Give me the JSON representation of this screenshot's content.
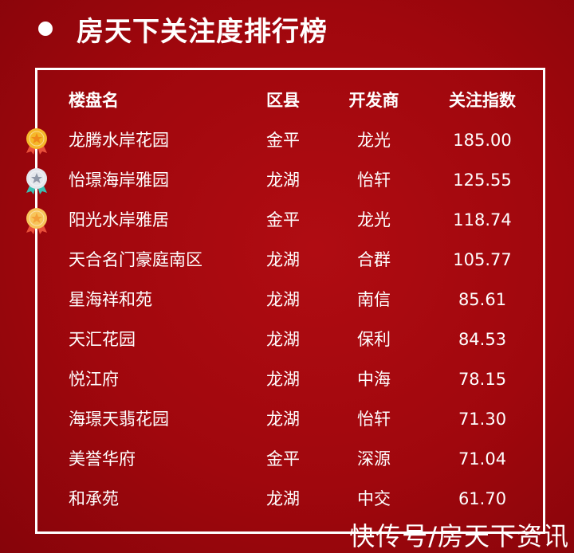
{
  "title": "房天下关注度排行榜",
  "columns": {
    "name": "楼盘名",
    "district": "区县",
    "developer": "开发商",
    "index": "关注指数"
  },
  "rows": [
    {
      "name": "龙腾水岸花园",
      "district": "金平",
      "developer": "龙光",
      "index": "185.00",
      "medal": "gold"
    },
    {
      "name": "怡璟海岸雅园",
      "district": "龙湖",
      "developer": "怡轩",
      "index": "125.55",
      "medal": "silver"
    },
    {
      "name": "阳光水岸雅居",
      "district": "金平",
      "developer": "龙光",
      "index": "118.74",
      "medal": "bronze"
    },
    {
      "name": "天合名门豪庭南区",
      "district": "龙湖",
      "developer": "合群",
      "index": "105.77"
    },
    {
      "name": "星海祥和苑",
      "district": "龙湖",
      "developer": "南信",
      "index": "85.61"
    },
    {
      "name": "天汇花园",
      "district": "龙湖",
      "developer": "保利",
      "index": "84.53"
    },
    {
      "name": "悦江府",
      "district": "龙湖",
      "developer": "中海",
      "index": "78.15"
    },
    {
      "name": "海璟天翡花园",
      "district": "龙湖",
      "developer": "怡轩",
      "index": "71.30"
    },
    {
      "name": "美誉华府",
      "district": "金平",
      "developer": "深源",
      "index": "71.04"
    },
    {
      "name": "和承苑",
      "district": "龙湖",
      "developer": "中交",
      "index": "61.70"
    }
  ],
  "watermark": "快传号/房天下资讯",
  "colors": {
    "background": "#a8080e",
    "gold": "#f5b82a",
    "silver": "#dfe3e8",
    "bronze": "#f7c55a"
  }
}
